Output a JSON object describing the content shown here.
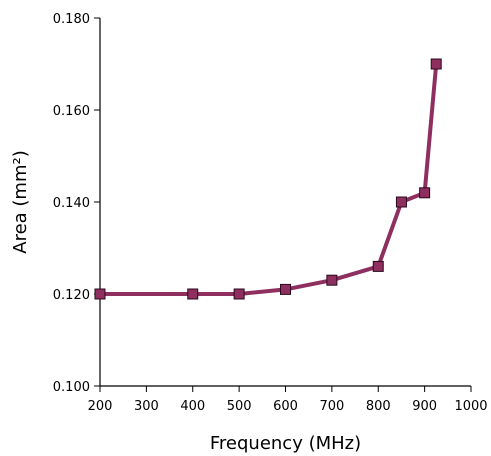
{
  "chart_data": {
    "type": "line",
    "title": "",
    "xlabel": "Frequency (MHz)",
    "ylabel": "Area (mm²)",
    "x": [
      200,
      400,
      500,
      600,
      700,
      800,
      850,
      900,
      925
    ],
    "series": [
      {
        "values": [
          0.12,
          0.12,
          0.12,
          0.121,
          0.123,
          0.126,
          0.14,
          0.142,
          0.17
        ],
        "color": "#8e2f60",
        "marker": "square"
      }
    ],
    "xlim": [
      200,
      1000
    ],
    "ylim": [
      0.1,
      0.18
    ],
    "xticks": [
      200,
      300,
      400,
      500,
      600,
      700,
      800,
      900,
      1000
    ],
    "xtick_labels": [
      "200",
      "300",
      "400",
      "500",
      "600",
      "700",
      "800",
      "900",
      "1000"
    ],
    "yticks": [
      0.1,
      0.12,
      0.14,
      0.16,
      0.18
    ],
    "ytick_labels": [
      "0.100",
      "0.120",
      "0.140",
      "0.160",
      "0.180"
    ],
    "grid": false,
    "legend": "none"
  }
}
